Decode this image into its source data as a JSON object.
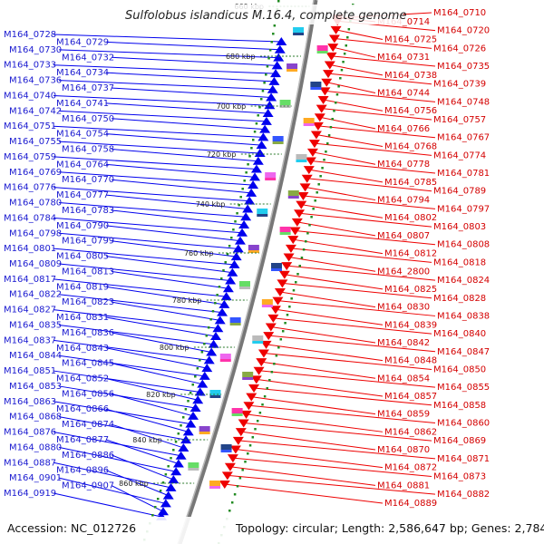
{
  "title": "Sulfolobus islandicus M.16.4, complete genome",
  "footer": {
    "accession": "Accession: NC_012726",
    "topology": "Topology: circular; Length: 2,586,647 bp; Genes: 2,784"
  },
  "scale_ticks": [
    "660 kbp",
    "680 kbp",
    "700 kbp",
    "720 kbp",
    "740 kbp",
    "760 kbp",
    "780 kbp",
    "800 kbp",
    "820 kbp",
    "840 kbp",
    "860 kbp"
  ],
  "colors": {
    "left_strand": "#0000ee",
    "right_strand": "#ee0000",
    "backbone": "#666666",
    "tick_dots": "#228b22"
  },
  "left_genes": [
    "M164_0728",
    "M164_0729",
    "M164_0730",
    "M164_0732",
    "M164_0733",
    "M164_0734",
    "M164_0736",
    "M164_0737",
    "M164_0740",
    "M164_0741",
    "M164_0742",
    "M164_0750",
    "M164_0751",
    "M164_0754",
    "M164_0755",
    "M164_0758",
    "M164_0759",
    "M164_0764",
    "M164_0769",
    "M164_0770",
    "M164_0776",
    "M164_0777",
    "M164_0780",
    "M164_0783",
    "M164_0784",
    "M164_0790",
    "M164_0798",
    "M164_0799",
    "M164_0801",
    "M164_0805",
    "M164_0809",
    "M164_0813",
    "M164_0817",
    "M164_0819",
    "M164_0822",
    "M164_0823",
    "M164_0827",
    "M164_0831",
    "M164_0835",
    "M164_0836",
    "M164_0837",
    "M164_0843",
    "M164_0844",
    "M164_0845",
    "M164_0851",
    "M164_0852",
    "M164_0853",
    "M164_0856",
    "M164_0863",
    "M164_0866",
    "M164_0868",
    "M164_0874",
    "M164_0876",
    "M164_0877",
    "M164_0880",
    "M164_0886",
    "M164_0887",
    "M164_0896",
    "M164_0901",
    "M164_0907",
    "M164_0919"
  ],
  "right_genes": [
    "M164_0710",
    "M164_0714",
    "M164_0720",
    "M164_0725",
    "M164_0726",
    "M164_0731",
    "M164_0735",
    "M164_0738",
    "M164_0739",
    "M164_0744",
    "M164_0748",
    "M164_0756",
    "M164_0757",
    "M164_0766",
    "M164_0767",
    "M164_0768",
    "M164_0774",
    "M164_0778",
    "M164_0781",
    "M164_0785",
    "M164_0789",
    "M164_0794",
    "M164_0797",
    "M164_0802",
    "M164_0803",
    "M164_0807",
    "M164_0808",
    "M164_0812",
    "M164_0818",
    "M164_2800",
    "M164_0824",
    "M164_0825",
    "M164_0828",
    "M164_0830",
    "M164_0838",
    "M164_0839",
    "M164_0840",
    "M164_0842",
    "M164_0847",
    "M164_0848",
    "M164_0850",
    "M164_0854",
    "M164_0855",
    "M164_0857",
    "M164_0858",
    "M164_0859",
    "M164_0860",
    "M164_0862",
    "M164_0869",
    "M164_0870",
    "M164_0871",
    "M164_0872",
    "M164_0873",
    "M164_0881",
    "M164_0882",
    "M164_0889"
  ]
}
